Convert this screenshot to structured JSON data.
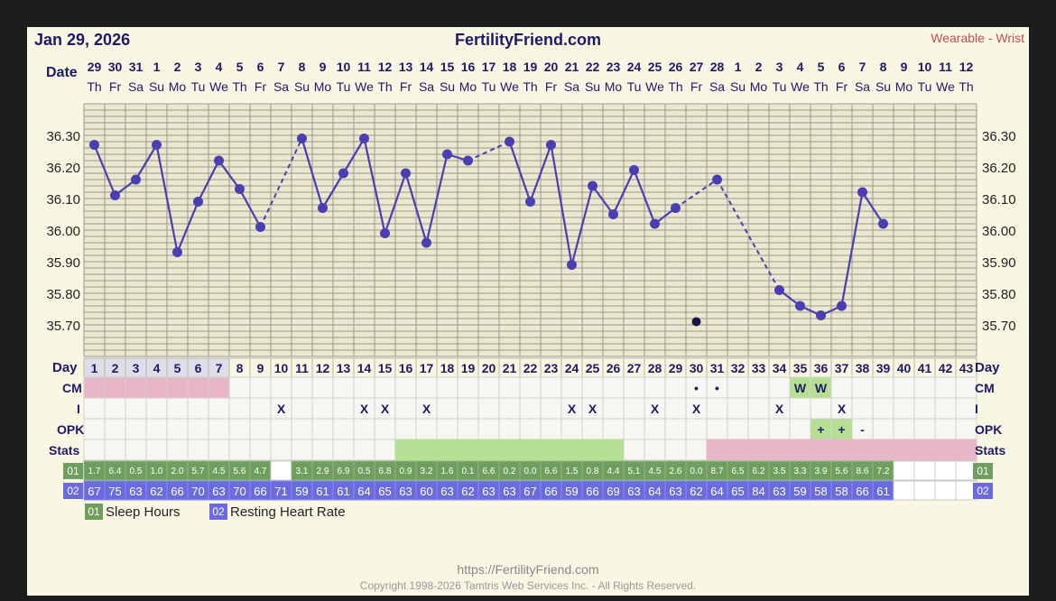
{
  "header": {
    "date": "Jan 29, 2026",
    "site": "FertilityFriend.com",
    "source": "Wearable - Wrist"
  },
  "labels": {
    "date_row": "Date",
    "day_row": "Day",
    "cm_row": "CM",
    "i_row": "I",
    "opk_row": "OPK",
    "stats_row": "Stats",
    "series1_badge": "01",
    "series2_badge": "02"
  },
  "legend": {
    "items": [
      {
        "badge": "01",
        "label": "Sleep Hours",
        "color": "#6f9e5e"
      },
      {
        "badge": "02",
        "label": "Resting Heart Rate",
        "color": "#6b6be0"
      }
    ]
  },
  "footer": {
    "url": "https://FertilityFriend.com",
    "copyright": "Copyright 1998-2026 Tamtris Web Services Inc. - All Rights Reserved."
  },
  "colors": {
    "line": "#4a3fb0",
    "menses": "#e7b6c8",
    "fertile": "#b5e094",
    "post": "#e7b6c8",
    "opk_positive": "#b5e094",
    "cm_watery": "#b5e094",
    "sleep": "#6f9e5e",
    "heart": "#6b6be0",
    "grid_bg": "#ebe8cf",
    "header_text": "#1f1a66",
    "source_text": "#c0504d"
  },
  "chart_data": {
    "type": "line",
    "ylim": [
      35.6,
      36.4
    ],
    "y_ticks": [
      "36.30",
      "36.20",
      "36.10",
      "36.00",
      "35.90",
      "35.80",
      "35.70"
    ],
    "dates": [
      "29",
      "30",
      "31",
      "1",
      "2",
      "3",
      "4",
      "5",
      "6",
      "7",
      "8",
      "9",
      "10",
      "11",
      "12",
      "13",
      "14",
      "15",
      "16",
      "17",
      "18",
      "19",
      "20",
      "21",
      "22",
      "23",
      "24",
      "25",
      "26",
      "27",
      "28",
      "1",
      "2",
      "3",
      "4",
      "5",
      "6",
      "7",
      "8",
      "9",
      "10",
      "11",
      "12"
    ],
    "weekdays": [
      "Th",
      "Fr",
      "Sa",
      "Su",
      "Mo",
      "Tu",
      "We",
      "Th",
      "Fr",
      "Sa",
      "Su",
      "Mo",
      "Tu",
      "We",
      "Th",
      "Fr",
      "Sa",
      "Su",
      "Mo",
      "Tu",
      "We",
      "Th",
      "Fr",
      "Sa",
      "Su",
      "Mo",
      "Tu",
      "We",
      "Th",
      "Fr",
      "Sa",
      "Su",
      "Mo",
      "Tu",
      "We",
      "Th",
      "Fr",
      "Sa",
      "Su",
      "Mo",
      "Tu",
      "We",
      "Th"
    ],
    "cycle_days": [
      "1",
      "2",
      "3",
      "4",
      "5",
      "6",
      "7",
      "8",
      "9",
      "10",
      "11",
      "12",
      "13",
      "14",
      "15",
      "16",
      "17",
      "18",
      "19",
      "20",
      "21",
      "22",
      "23",
      "24",
      "25",
      "26",
      "27",
      "28",
      "29",
      "30",
      "31",
      "32",
      "33",
      "34",
      "35",
      "36",
      "37",
      "38",
      "39",
      "40",
      "41",
      "42",
      "43"
    ],
    "temperatures": [
      36.27,
      36.11,
      36.16,
      36.27,
      35.93,
      36.09,
      36.22,
      36.13,
      36.01,
      null,
      36.29,
      36.07,
      36.18,
      36.29,
      35.99,
      36.18,
      35.96,
      36.24,
      36.22,
      null,
      36.28,
      36.09,
      36.27,
      35.89,
      36.14,
      36.05,
      36.19,
      36.02,
      36.07,
      null,
      36.16,
      null,
      null,
      35.81,
      35.76,
      35.73,
      35.76,
      36.12,
      36.02,
      null,
      null,
      null,
      null
    ],
    "dashed_gaps": [
      [
        8,
        10
      ],
      [
        18,
        20
      ],
      [
        28,
        30
      ],
      [
        30,
        33
      ]
    ],
    "discarded": [
      {
        "index": 29,
        "value": 35.71
      }
    ],
    "cm": [
      "",
      "",
      "",
      "",
      "",
      "",
      "",
      "",
      "",
      "",
      "",
      "",
      "",
      "",
      "",
      "",
      "",
      "",
      "",
      "",
      "",
      "",
      "",
      "",
      "",
      "",
      "",
      "",
      "",
      "•",
      "•",
      "",
      "",
      "",
      "W",
      "W",
      "",
      "",
      "",
      "",
      "",
      "",
      ""
    ],
    "intercourse": [
      "",
      "",
      "",
      "",
      "",
      "",
      "",
      "",
      "",
      "X",
      "",
      "",
      "",
      "X",
      "X",
      "",
      "X",
      "",
      "",
      "",
      "",
      "",
      "",
      "X",
      "X",
      "",
      "",
      "X",
      "",
      "X",
      "",
      "",
      "",
      "X",
      "",
      "",
      "X",
      "",
      "",
      "",
      "",
      "",
      ""
    ],
    "opk": [
      "",
      "",
      "",
      "",
      "",
      "",
      "",
      "",
      "",
      "",
      "",
      "",
      "",
      "",
      "",
      "",
      "",
      "",
      "",
      "",
      "",
      "",
      "",
      "",
      "",
      "",
      "",
      "",
      "",
      "",
      "",
      "",
      "",
      "",
      "",
      "+",
      "+",
      "-",
      "",
      "",
      "",
      "",
      ""
    ],
    "stats": [
      "",
      "",
      "",
      "",
      "",
      "",
      "",
      "",
      "",
      "",
      "",
      "",
      "",
      "",
      "",
      "F",
      "F",
      "F",
      "F",
      "F",
      "F",
      "F",
      "F",
      "F",
      "F",
      "F",
      "",
      "",
      "",
      "",
      "P",
      "P",
      "P",
      "P",
      "P",
      "P",
      "P",
      "P",
      "P",
      "P",
      "P",
      "P",
      "P"
    ],
    "series": [
      {
        "name": "Sleep Hours",
        "values": [
          "1.7",
          "6.4",
          "0.5",
          "1.0",
          "2.0",
          "5.7",
          "4.5",
          "5.6",
          "4.7",
          "",
          "3.1",
          "2.9",
          "6.9",
          "0.5",
          "6.8",
          "0.9",
          "3.2",
          "1.6",
          "0.1",
          "6.6",
          "0.2",
          "0.0",
          "6.6",
          "1.5",
          "0.8",
          "4.4",
          "5.1",
          "4.5",
          "2.6",
          "0.0",
          "8.7",
          "6.5",
          "6.2",
          "3.5",
          "3.3",
          "3.9",
          "5.6",
          "8.6",
          "7.2",
          "",
          "",
          "",
          ""
        ]
      },
      {
        "name": "Resting Heart Rate",
        "values": [
          "67",
          "75",
          "63",
          "62",
          "66",
          "70",
          "63",
          "70",
          "66",
          "71",
          "59",
          "61",
          "61",
          "64",
          "65",
          "63",
          "60",
          "63",
          "62",
          "63",
          "63",
          "67",
          "66",
          "59",
          "66",
          "69",
          "63",
          "64",
          "63",
          "62",
          "64",
          "65",
          "84",
          "63",
          "59",
          "58",
          "58",
          "66",
          "61",
          "",
          "",
          "",
          ""
        ]
      }
    ]
  }
}
